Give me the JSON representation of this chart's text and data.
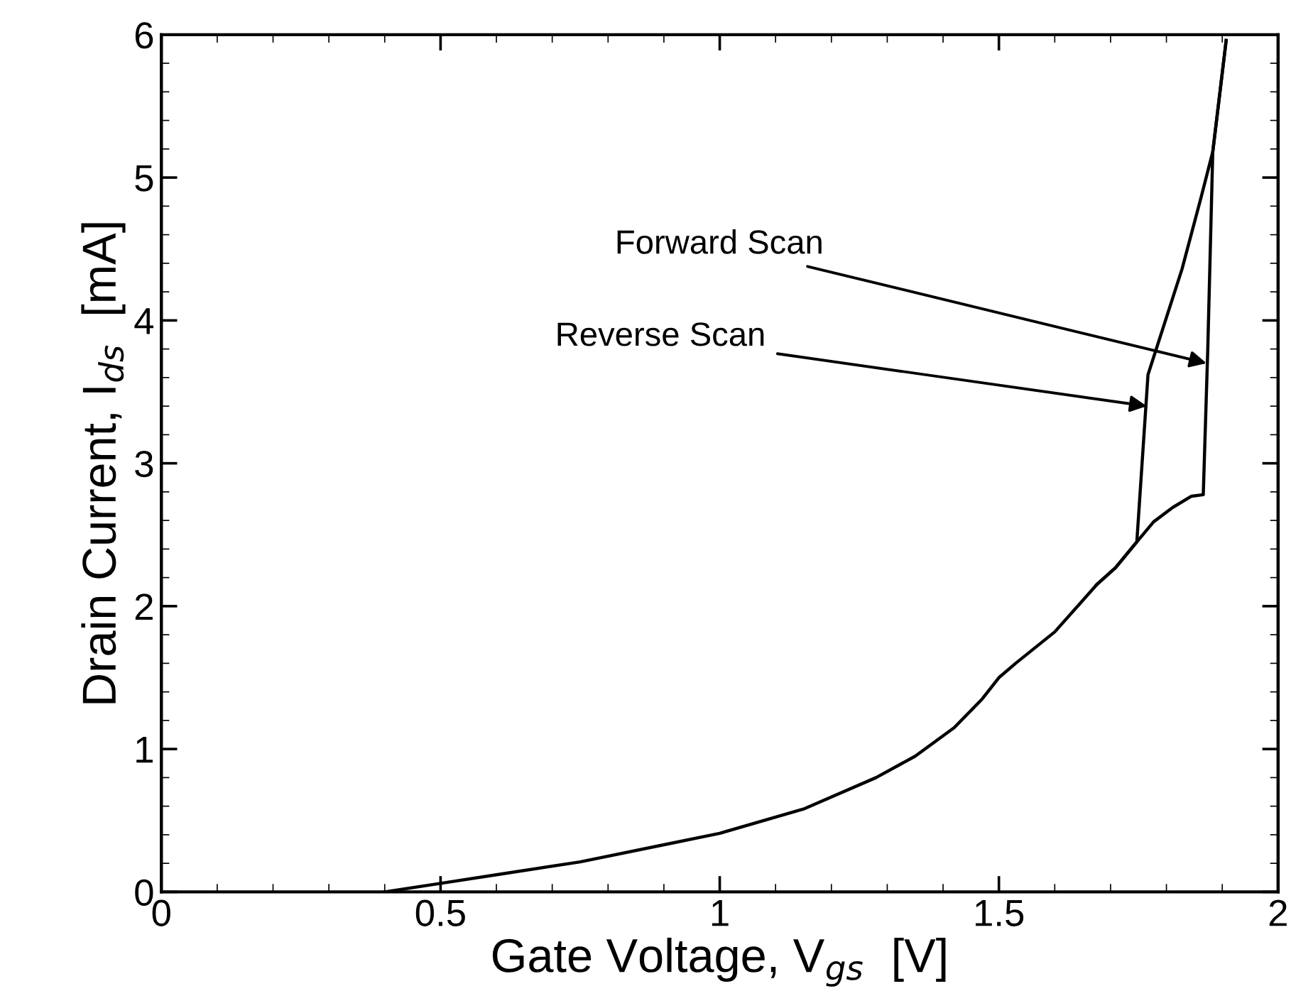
{
  "chart_data": {
    "type": "line",
    "xlabel": "Gate Voltage, V$_{gs}$  [V]",
    "ylabel": "Drain Current, I$_{ds}$  [mA]",
    "series": [
      {
        "color": "#000000",
        "x": [
          0.4,
          0.5,
          0.6,
          0.75,
          0.9,
          1.0,
          1.15,
          1.28,
          1.35,
          1.42,
          1.47,
          1.5,
          1.53,
          1.6,
          1.675,
          1.709,
          1.747,
          1.777,
          1.811,
          1.845,
          1.866,
          1.874,
          1.883,
          1.907
        ],
        "values": [
          0,
          0.06,
          0.12,
          0.21,
          0.33,
          0.41,
          0.58,
          0.8,
          0.95,
          1.15,
          1.35,
          1.5,
          1.6,
          1.82,
          2.15,
          2.27,
          2.45,
          2.59,
          2.69,
          2.77,
          2.78,
          3.79,
          5.18,
          5.96
        ]
      },
      {
        "color": "#000000",
        "x": [
          1.907,
          1.883,
          1.862,
          1.828,
          1.767,
          1.747,
          1.709,
          1.675
        ],
        "values": [
          5.96,
          5.18,
          4.86,
          4.36,
          3.62,
          2.45,
          2.27,
          2.15
        ]
      }
    ],
    "annotations": [
      {
        "text": "Forward Scan",
        "x": 1.872,
        "y": 3.7
      },
      {
        "text": "Reverse Scan",
        "x": 1.765,
        "y": 3.4
      }
    ],
    "xlim": [
      0,
      2
    ],
    "ylim": [
      0,
      6
    ],
    "xticks": [
      0,
      0.5,
      1,
      1.5,
      2
    ],
    "yticks": [
      0,
      1,
      2,
      3,
      4,
      5,
      6
    ],
    "grid": false,
    "legend": false,
    "marker": "none",
    "line_style": "solid"
  }
}
